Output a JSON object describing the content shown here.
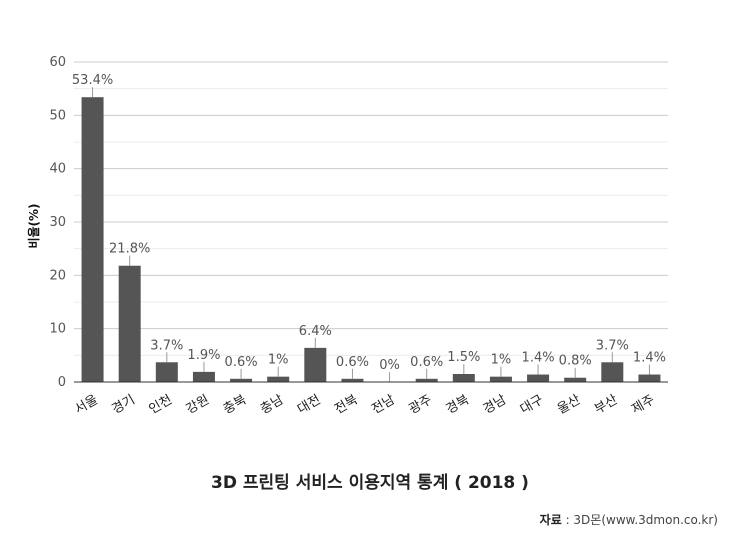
{
  "chart_data": {
    "type": "bar",
    "title": "3D 프린팅 서비스 이용지역 통계 ( 2018 )",
    "ylabel": "비율(%)",
    "xlabel": "",
    "ylim": [
      0,
      60
    ],
    "yticks": [
      0,
      10,
      20,
      30,
      40,
      50,
      60
    ],
    "grid": true,
    "categories": [
      "서울",
      "경기",
      "인천",
      "강원",
      "충북",
      "충남",
      "대전",
      "전북",
      "전남",
      "광주",
      "경북",
      "경남",
      "대구",
      "울산",
      "부산",
      "제주"
    ],
    "values": [
      53.4,
      21.8,
      3.7,
      1.9,
      0.6,
      1,
      6.4,
      0.6,
      0,
      0.6,
      1.5,
      1,
      1.4,
      0.8,
      3.7,
      1.4
    ],
    "data_labels": [
      "53.4%",
      "21.8%",
      "3.7%",
      "1.9%",
      "0.6%",
      "1%",
      "6.4%",
      "0.6%",
      "0%",
      "0.6%",
      "1.5%",
      "1%",
      "1.4%",
      "0.8%",
      "3.7%",
      "1.4%"
    ],
    "bar_color": "#555555"
  },
  "source": {
    "label": "자료",
    "separator": " : ",
    "text": "3D몬(www.3dmon.co.kr)"
  }
}
